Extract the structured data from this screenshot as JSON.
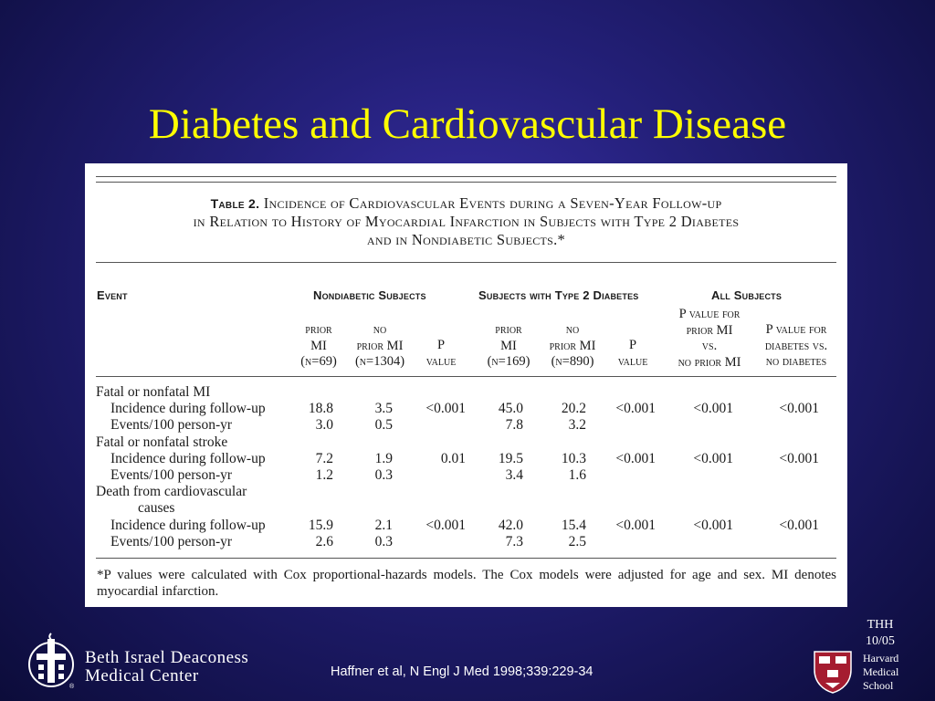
{
  "slide": {
    "title": "Diabetes and Cardiovascular Disease",
    "citation": "Haffner et al, N Engl J Med 1998;339:229-34",
    "thh": "THH",
    "date": "10/05",
    "bidmc_name_line1": "Beth Israel Deaconess",
    "bidmc_name_line2": "Medical Center",
    "harvard_line1": "Harvard",
    "harvard_line2": "Medical",
    "harvard_line3": "School",
    "registered": "®"
  },
  "table": {
    "label": "Table 2.",
    "caption_line1": "Incidence of Cardiovascular Events during a Seven-Year Follow-up",
    "caption_line2": "in Relation to History of Myocardial Infarction in Subjects with Type 2 Diabetes",
    "caption_line3": "and in Nondiabetic Subjects.*",
    "group_headers": {
      "event": "Event",
      "nondiabetic": "Nondiabetic Subjects",
      "diabetic": "Subjects with Type 2 Diabetes",
      "all": "All Subjects"
    },
    "subheaders": {
      "nd_prior": [
        "prior",
        "MI",
        "(n=69)"
      ],
      "nd_noprior": [
        "no",
        "prior MI",
        "(n=1304)"
      ],
      "nd_p": [
        "P",
        "value"
      ],
      "d_prior": [
        "prior",
        "MI",
        "(n=169)"
      ],
      "d_noprior": [
        "no",
        "prior MI",
        "(n=890)"
      ],
      "d_p": [
        "P",
        "value"
      ],
      "all_p1": [
        "P value for",
        "prior MI",
        "vs.",
        "no prior MI"
      ],
      "all_p2": [
        "P value for",
        "diabetes vs.",
        "no diabetes"
      ]
    },
    "rows": [
      {
        "label": "Fatal or nonfatal MI",
        "indent": 0,
        "values": [
          "",
          "",
          "",
          "",
          "",
          "",
          "",
          ""
        ]
      },
      {
        "label": "Incidence during follow-up",
        "indent": 1,
        "values": [
          "18.8",
          "3.5",
          "<0.001",
          "45.0",
          "20.2",
          "<0.001",
          "<0.001",
          "<0.001"
        ]
      },
      {
        "label": "Events/100 person-yr",
        "indent": 1,
        "values": [
          "3.0",
          "0.5",
          "",
          "7.8",
          "3.2",
          "",
          "",
          ""
        ]
      },
      {
        "label": "Fatal or nonfatal stroke",
        "indent": 0,
        "values": [
          "",
          "",
          "",
          "",
          "",
          "",
          "",
          ""
        ]
      },
      {
        "label": "Incidence during follow-up",
        "indent": 1,
        "values": [
          "7.2",
          "1.9",
          "0.01",
          "19.5",
          "10.3",
          "<0.001",
          "<0.001",
          "<0.001"
        ]
      },
      {
        "label": "Events/100 person-yr",
        "indent": 1,
        "values": [
          "1.2",
          "0.3",
          "",
          "3.4",
          "1.6",
          "",
          "",
          ""
        ]
      },
      {
        "label": "Death from cardiovascular",
        "indent": 0,
        "values": [
          "",
          "",
          "",
          "",
          "",
          "",
          "",
          ""
        ]
      },
      {
        "label": "causes",
        "indent": 2,
        "values": [
          "",
          "",
          "",
          "",
          "",
          "",
          "",
          ""
        ]
      },
      {
        "label": "Incidence during follow-up",
        "indent": 1,
        "values": [
          "15.9",
          "2.1",
          "<0.001",
          "42.0",
          "15.4",
          "<0.001",
          "<0.001",
          "<0.001"
        ]
      },
      {
        "label": "Events/100 person-yr",
        "indent": 1,
        "values": [
          "2.6",
          "0.3",
          "",
          "7.3",
          "2.5",
          "",
          "",
          ""
        ]
      }
    ],
    "footnote": "*P values were calculated with Cox proportional-hazards models. The Cox models were adjusted for age and sex. MI denotes myocardial infarction."
  },
  "colors": {
    "title": "#ffff00",
    "background": "#24207a",
    "harvard_crimson": "#a51c30"
  }
}
